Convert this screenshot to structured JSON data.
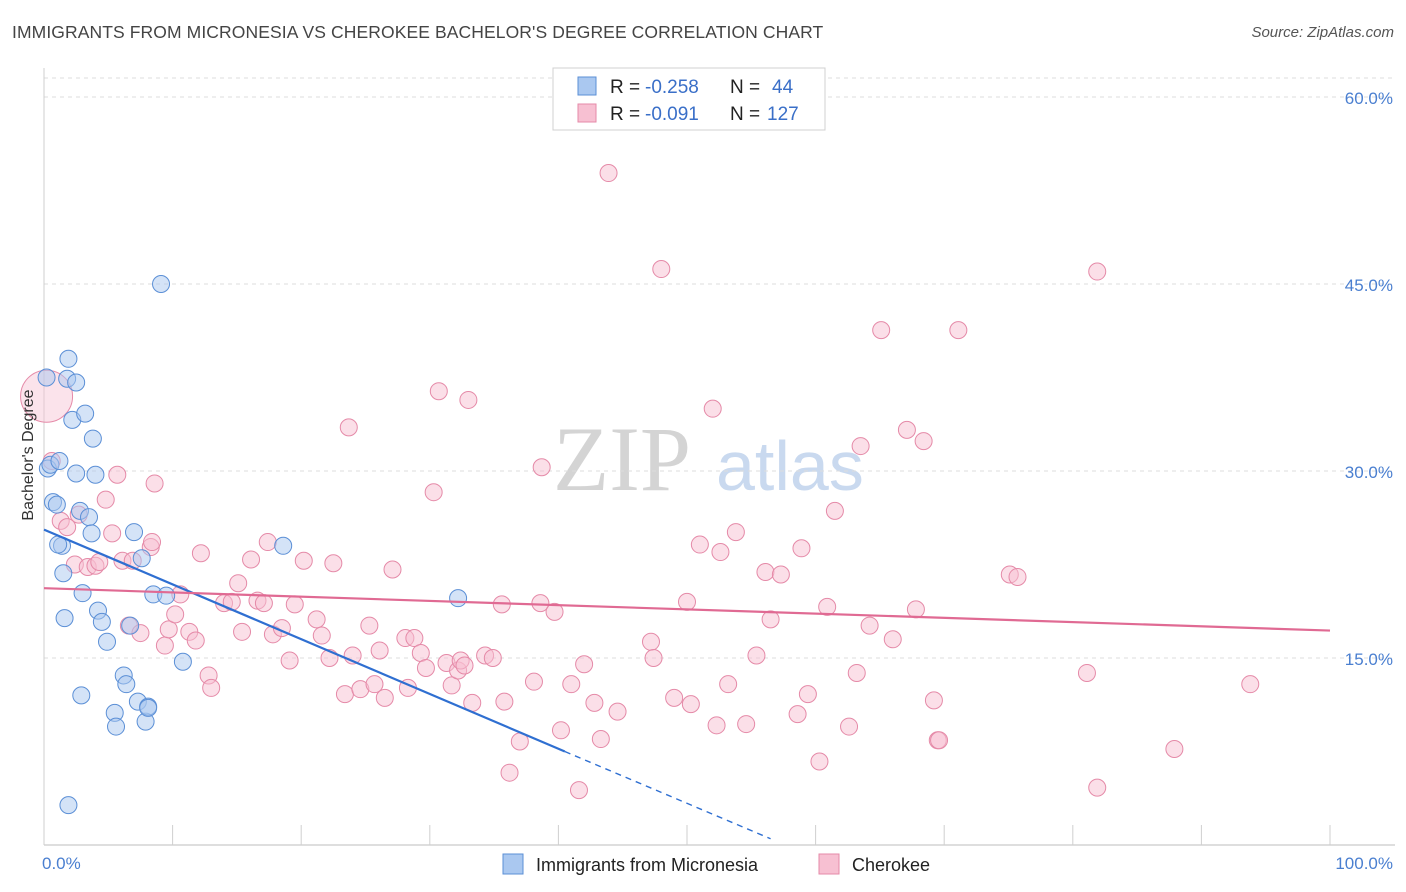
{
  "title": "IMMIGRANTS FROM MICRONESIA VS CHEROKEE BACHELOR'S DEGREE CORRELATION CHART",
  "source": "Source: ZipAtlas.com",
  "watermark": {
    "zip": "ZIP",
    "atlas": "atlas"
  },
  "colors": {
    "blue_fill": "#aac8f0",
    "blue_stroke": "#5b8fd6",
    "blue_line": "#2f6fd1",
    "pink_fill": "#f7c0d2",
    "pink_stroke": "#e58aa8",
    "pink_line": "#e06a93",
    "grid": "#dddddd",
    "axis_text": "#4a7fd0"
  },
  "legend": {
    "rows": [
      {
        "r_label": "R =",
        "r_value": "-0.258",
        "n_label": "N =",
        "n_value": "44"
      },
      {
        "r_label": "R =",
        "r_value": "-0.091",
        "n_label": "N =",
        "n_value": "127"
      }
    ]
  },
  "chart_data": {
    "type": "scatter",
    "ylabel": "Bachelor's Degree",
    "xlim": [
      0,
      100
    ],
    "ylim": [
      0,
      60
    ],
    "x_tick_labels": [
      "0.0%",
      "100.0%"
    ],
    "y_ticks": [
      15,
      30,
      45,
      60
    ],
    "y_tick_labels": [
      "15.0%",
      "30.0%",
      "45.0%",
      "60.0%"
    ],
    "grid": true,
    "series": [
      {
        "name": "Immigrants from Micronesia",
        "color": "blue",
        "trend": {
          "x0": 0,
          "y0": 25.3,
          "x1": 40.5,
          "y1": 7.5,
          "dash_to_x": 56.5,
          "dash_to_y": 0.5
        },
        "points": [
          [
            0.2,
            37.5
          ],
          [
            0.3,
            30.2
          ],
          [
            0.5,
            30.5
          ],
          [
            0.7,
            27.5
          ],
          [
            1.0,
            27.3
          ],
          [
            1.2,
            30.8
          ],
          [
            1.4,
            24.0
          ],
          [
            1.5,
            21.8
          ],
          [
            1.6,
            18.2
          ],
          [
            1.9,
            39.0
          ],
          [
            1.8,
            37.4
          ],
          [
            2.2,
            34.1
          ],
          [
            2.5,
            37.1
          ],
          [
            2.5,
            29.8
          ],
          [
            2.8,
            26.8
          ],
          [
            3.2,
            34.6
          ],
          [
            3.5,
            26.3
          ],
          [
            3.7,
            25.0
          ],
          [
            3.8,
            32.6
          ],
          [
            4.0,
            29.7
          ],
          [
            4.2,
            18.8
          ],
          [
            4.5,
            17.9
          ],
          [
            4.9,
            16.3
          ],
          [
            5.5,
            10.6
          ],
          [
            5.6,
            9.5
          ],
          [
            6.2,
            13.6
          ],
          [
            6.4,
            12.9
          ],
          [
            6.7,
            17.6
          ],
          [
            7.0,
            25.1
          ],
          [
            7.3,
            11.5
          ],
          [
            7.6,
            23.0
          ],
          [
            7.9,
            9.9
          ],
          [
            8.1,
            11.1
          ],
          [
            8.5,
            20.1
          ],
          [
            9.1,
            45.0
          ],
          [
            9.5,
            20.0
          ],
          [
            10.8,
            14.7
          ],
          [
            2.9,
            12.0
          ],
          [
            3.0,
            20.2
          ],
          [
            1.9,
            3.2
          ],
          [
            8.1,
            11.0
          ],
          [
            18.6,
            24.0
          ],
          [
            32.2,
            19.8
          ],
          [
            1.1,
            24.1
          ]
        ]
      },
      {
        "name": "Cherokee",
        "color": "pink",
        "trend": {
          "x0": 0,
          "y0": 20.6,
          "x1": 100,
          "y1": 17.2
        },
        "points": [
          [
            0.2,
            36.0
          ],
          [
            0.6,
            30.8
          ],
          [
            1.3,
            26.0
          ],
          [
            1.8,
            25.5
          ],
          [
            2.4,
            22.5
          ],
          [
            2.7,
            26.5
          ],
          [
            3.4,
            22.3
          ],
          [
            4.0,
            22.4
          ],
          [
            4.3,
            22.7
          ],
          [
            4.8,
            27.7
          ],
          [
            5.3,
            25.0
          ],
          [
            5.7,
            29.7
          ],
          [
            6.1,
            22.8
          ],
          [
            6.6,
            17.6
          ],
          [
            6.9,
            22.8
          ],
          [
            7.5,
            17.0
          ],
          [
            8.3,
            23.9
          ],
          [
            8.4,
            24.3
          ],
          [
            8.6,
            29.0
          ],
          [
            9.4,
            16.0
          ],
          [
            9.7,
            17.3
          ],
          [
            10.2,
            18.5
          ],
          [
            10.6,
            20.1
          ],
          [
            11.3,
            17.1
          ],
          [
            11.8,
            16.4
          ],
          [
            12.2,
            23.4
          ],
          [
            12.8,
            13.6
          ],
          [
            13.0,
            12.6
          ],
          [
            14.0,
            19.4
          ],
          [
            14.6,
            19.5
          ],
          [
            15.1,
            21.0
          ],
          [
            15.4,
            17.1
          ],
          [
            16.1,
            22.9
          ],
          [
            16.6,
            19.6
          ],
          [
            17.1,
            19.4
          ],
          [
            17.4,
            24.3
          ],
          [
            17.8,
            16.9
          ],
          [
            18.5,
            17.4
          ],
          [
            19.1,
            14.8
          ],
          [
            19.5,
            19.3
          ],
          [
            20.2,
            22.8
          ],
          [
            21.2,
            18.1
          ],
          [
            21.6,
            16.8
          ],
          [
            22.2,
            15.0
          ],
          [
            22.5,
            22.6
          ],
          [
            23.4,
            12.1
          ],
          [
            23.7,
            33.5
          ],
          [
            24.0,
            15.2
          ],
          [
            24.6,
            12.5
          ],
          [
            25.3,
            17.6
          ],
          [
            25.7,
            12.9
          ],
          [
            26.1,
            15.6
          ],
          [
            26.5,
            11.8
          ],
          [
            27.1,
            22.1
          ],
          [
            28.1,
            16.6
          ],
          [
            28.3,
            12.6
          ],
          [
            28.8,
            16.6
          ],
          [
            29.3,
            15.4
          ],
          [
            29.7,
            14.2
          ],
          [
            30.3,
            28.3
          ],
          [
            30.7,
            36.4
          ],
          [
            31.3,
            14.6
          ],
          [
            31.7,
            12.8
          ],
          [
            32.2,
            14.0
          ],
          [
            32.4,
            14.8
          ],
          [
            32.7,
            14.4
          ],
          [
            33.0,
            35.7
          ],
          [
            33.3,
            11.4
          ],
          [
            34.3,
            15.2
          ],
          [
            34.9,
            15.0
          ],
          [
            35.6,
            19.3
          ],
          [
            35.8,
            11.5
          ],
          [
            36.2,
            5.8
          ],
          [
            37.0,
            8.3
          ],
          [
            38.1,
            13.1
          ],
          [
            38.6,
            19.4
          ],
          [
            38.7,
            30.3
          ],
          [
            39.7,
            18.7
          ],
          [
            40.2,
            9.2
          ],
          [
            41.0,
            12.9
          ],
          [
            41.6,
            4.4
          ],
          [
            42.0,
            14.5
          ],
          [
            42.8,
            11.4
          ],
          [
            43.3,
            8.5
          ],
          [
            43.9,
            53.9
          ],
          [
            44.6,
            10.7
          ],
          [
            47.2,
            16.3
          ],
          [
            47.4,
            15.0
          ],
          [
            48.0,
            46.2
          ],
          [
            49.0,
            11.8
          ],
          [
            50.0,
            19.5
          ],
          [
            50.3,
            11.3
          ],
          [
            51.0,
            24.1
          ],
          [
            52.0,
            35.0
          ],
          [
            52.3,
            9.6
          ],
          [
            52.6,
            23.5
          ],
          [
            53.2,
            12.9
          ],
          [
            53.8,
            25.1
          ],
          [
            54.6,
            9.7
          ],
          [
            55.4,
            15.2
          ],
          [
            56.1,
            21.9
          ],
          [
            56.5,
            18.1
          ],
          [
            57.3,
            21.7
          ],
          [
            58.6,
            10.5
          ],
          [
            58.9,
            23.8
          ],
          [
            59.4,
            12.1
          ],
          [
            60.3,
            6.7
          ],
          [
            60.9,
            19.1
          ],
          [
            61.5,
            26.8
          ],
          [
            62.6,
            9.5
          ],
          [
            63.2,
            13.8
          ],
          [
            63.5,
            32.0
          ],
          [
            64.2,
            17.6
          ],
          [
            65.1,
            41.3
          ],
          [
            66.0,
            16.5
          ],
          [
            67.1,
            33.3
          ],
          [
            67.8,
            18.9
          ],
          [
            68.4,
            32.4
          ],
          [
            69.2,
            11.6
          ],
          [
            69.5,
            8.4
          ],
          [
            71.1,
            41.3
          ],
          [
            75.1,
            21.7
          ],
          [
            75.7,
            21.5
          ],
          [
            81.1,
            13.8
          ],
          [
            81.9,
            4.6
          ],
          [
            81.9,
            46.0
          ],
          [
            87.9,
            7.7
          ],
          [
            93.8,
            12.9
          ],
          [
            69.6,
            8.4
          ]
        ]
      }
    ]
  },
  "bottom_legend": [
    {
      "label": "Immigrants from Micronesia",
      "color": "blue"
    },
    {
      "label": "Cherokee",
      "color": "pink"
    }
  ]
}
